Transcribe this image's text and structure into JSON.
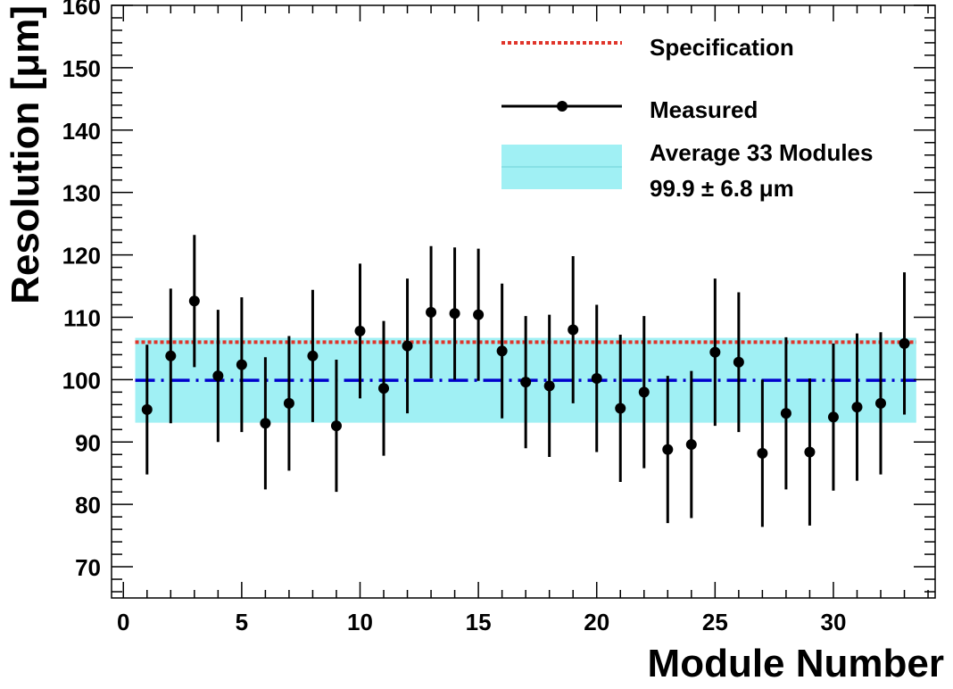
{
  "chart_data": {
    "type": "scatter",
    "title": "",
    "xlabel": "Module Number",
    "ylabel": "Resolution [μm]",
    "xlim": [
      -0.5,
      34.3
    ],
    "ylim": [
      65,
      160
    ],
    "xticks": [
      0,
      5,
      10,
      15,
      20,
      25,
      30
    ],
    "yticks": [
      70,
      80,
      90,
      100,
      110,
      120,
      130,
      140,
      150,
      160
    ],
    "legend_position": "top-right",
    "series": [
      {
        "name": "Measured",
        "color": "#000000",
        "x": [
          1,
          2,
          3,
          4,
          5,
          6,
          7,
          8,
          9,
          10,
          11,
          12,
          13,
          14,
          15,
          16,
          17,
          18,
          19,
          20,
          21,
          22,
          23,
          24,
          25,
          26,
          27,
          28,
          29,
          30,
          31,
          32,
          33
        ],
        "y": [
          95.2,
          103.8,
          112.6,
          100.6,
          102.4,
          93.0,
          96.2,
          103.8,
          92.6,
          107.8,
          98.6,
          105.4,
          110.8,
          110.6,
          110.4,
          104.6,
          99.6,
          99.0,
          108.0,
          100.2,
          95.4,
          98.0,
          88.8,
          89.6,
          104.4,
          102.8,
          88.2,
          94.6,
          88.4,
          94.0,
          95.6,
          96.2,
          105.8
        ],
        "yerr": [
          10.4,
          10.8,
          10.6,
          10.6,
          10.8,
          10.6,
          10.8,
          10.6,
          10.6,
          10.8,
          10.8,
          10.8,
          10.6,
          10.6,
          10.6,
          10.8,
          10.6,
          11.4,
          11.8,
          11.8,
          11.8,
          12.2,
          11.8,
          11.8,
          11.8,
          11.2,
          11.8,
          12.2,
          11.8,
          11.8,
          11.8,
          11.4,
          11.4
        ]
      }
    ],
    "specification": {
      "name": "Specification",
      "value": 106,
      "color": "#e0352b"
    },
    "average": {
      "name": "Average 33 Modules",
      "label": "99.9 ± 6.8  μm",
      "value": 99.9,
      "error": 6.8,
      "x_range": [
        0.5,
        33.5
      ],
      "band_color": "#a0f0f4",
      "line_color": "#0000cc"
    }
  }
}
